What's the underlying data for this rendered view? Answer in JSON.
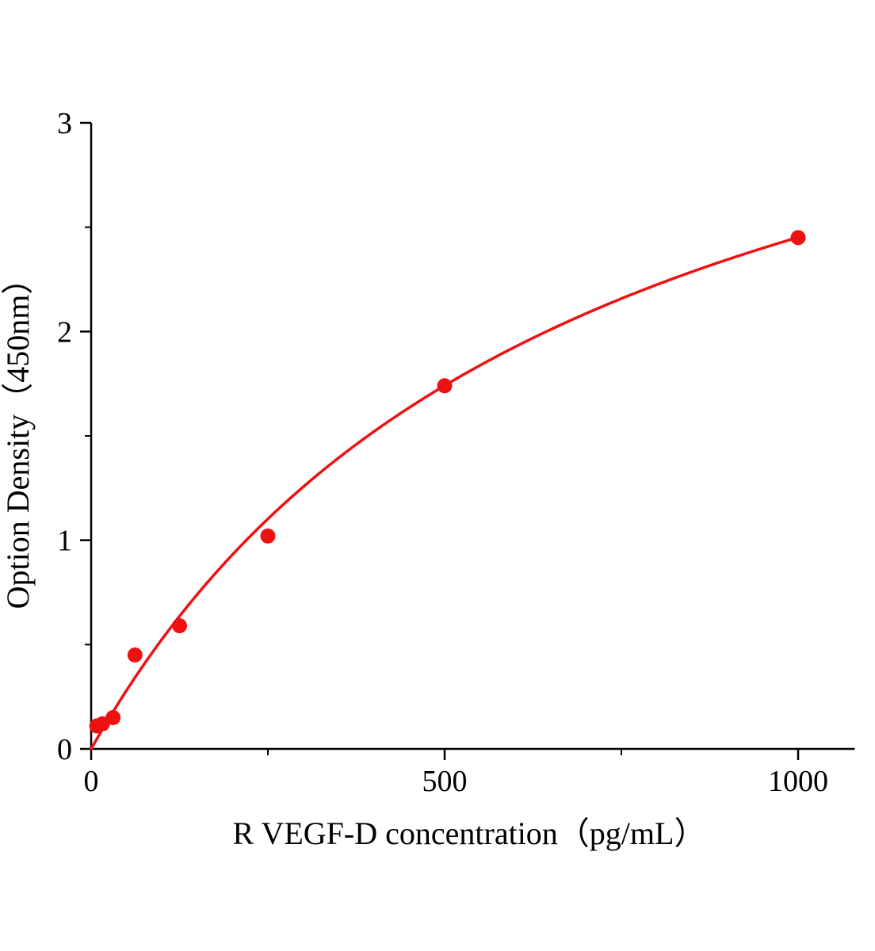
{
  "chart_data": {
    "type": "scatter",
    "title": "",
    "xlabel": "R VEGF-D concentration（pg/mL）",
    "ylabel": "Option Density（450nm）",
    "points": {
      "x": [
        8,
        16,
        31,
        62,
        125,
        250,
        500,
        1000
      ],
      "y": [
        0.11,
        0.12,
        0.15,
        0.45,
        0.59,
        1.02,
        1.74,
        2.45
      ]
    },
    "fit_curve": {
      "model": "michaelis_menten",
      "vmax": 4.14,
      "k": 689,
      "x_range": [
        0,
        1000
      ]
    },
    "xlim": [
      0,
      1080
    ],
    "ylim": [
      0,
      3
    ],
    "xticks": [
      0,
      500,
      1000
    ],
    "yticks": [
      0,
      1,
      2,
      3
    ],
    "x_minor_ticks": [
      250,
      750
    ],
    "y_minor_ticks": [
      0.5,
      1.5,
      2.5
    ],
    "grid": false,
    "legend": false,
    "colors": {
      "series": "#ee1111",
      "axis": "#000000",
      "background": "#ffffff"
    }
  }
}
